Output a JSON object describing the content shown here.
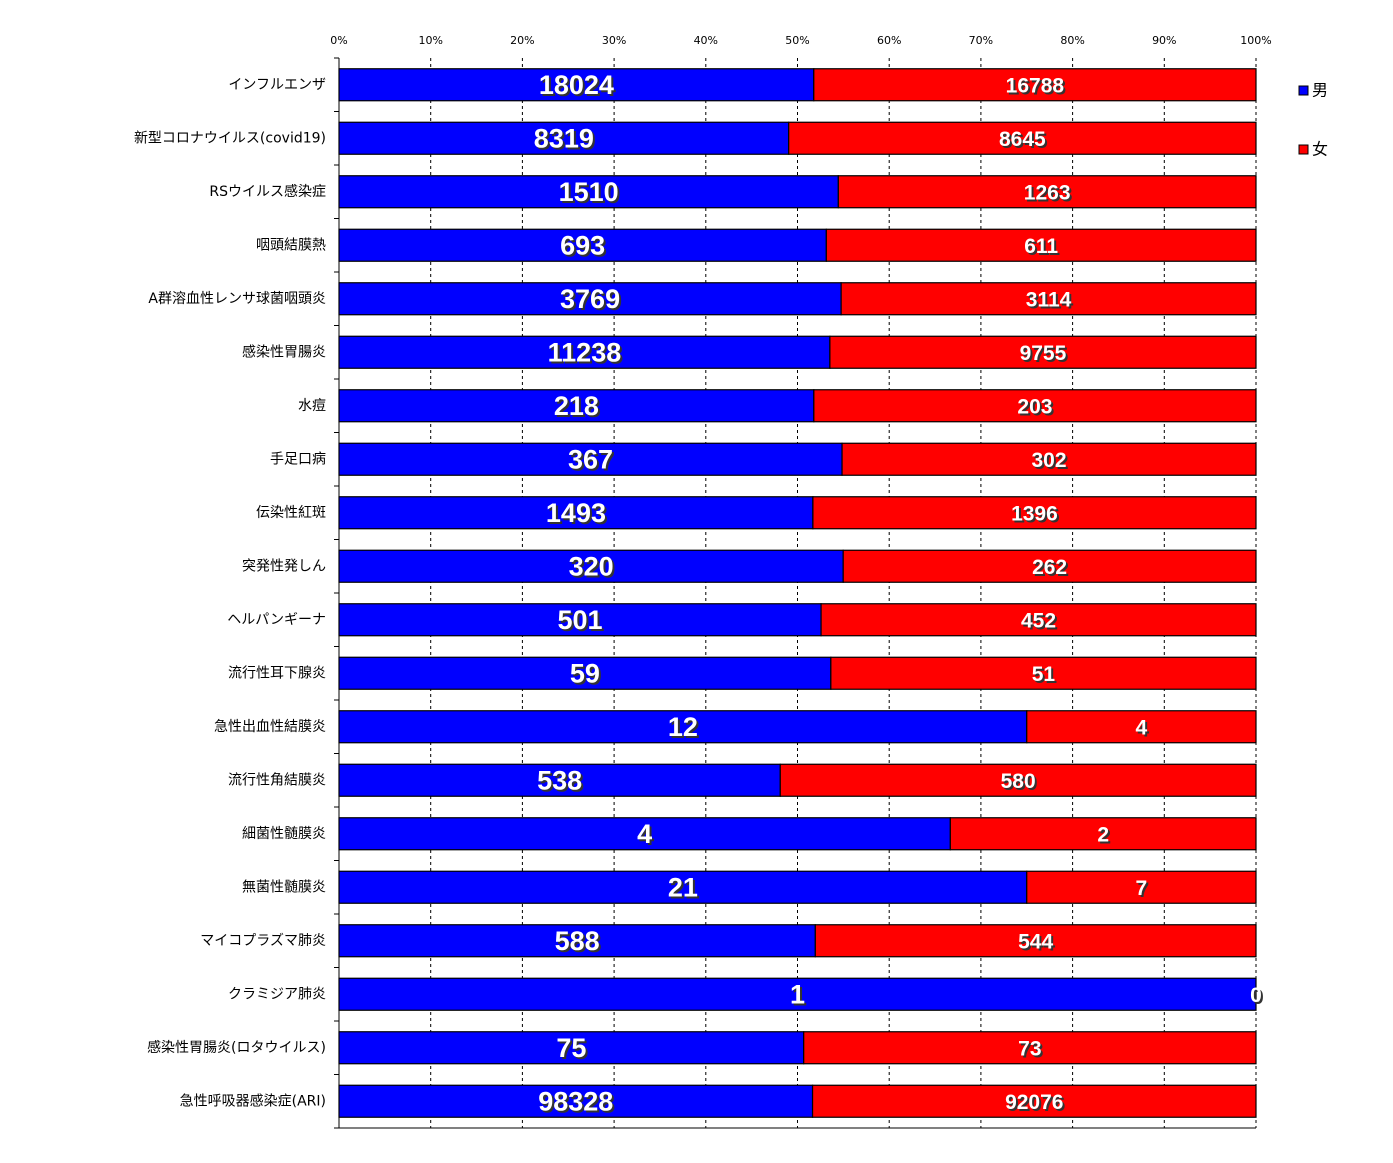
{
  "chart_data": {
    "type": "bar",
    "orientation": "horizontal",
    "stacking": "percent",
    "categories": [
      "インフルエンザ",
      "新型コロナウイルス(covid19)",
      "RSウイルス感染症",
      "咽頭結膜熱",
      "A群溶血性レンサ球菌咽頭炎",
      "感染性胃腸炎",
      "水痘",
      "手足口病",
      "伝染性紅斑",
      "突発性発しん",
      "ヘルパンギーナ",
      "流行性耳下腺炎",
      "急性出血性結膜炎",
      "流行性角結膜炎",
      "細菌性髄膜炎",
      "無菌性髄膜炎",
      "マイコプラズマ肺炎",
      "クラミジア肺炎",
      "感染性胃腸炎(ロタウイルス)",
      "急性呼吸器感染症(ARI)"
    ],
    "series": [
      {
        "name": "男",
        "color": "#0000ff",
        "values": [
          18024,
          8319,
          1510,
          693,
          3769,
          11238,
          218,
          367,
          1493,
          320,
          501,
          59,
          12,
          538,
          4,
          21,
          588,
          1,
          75,
          98328
        ]
      },
      {
        "name": "女",
        "color": "#ff0000",
        "values": [
          16788,
          8645,
          1263,
          611,
          3114,
          9755,
          203,
          302,
          1396,
          262,
          452,
          51,
          4,
          580,
          2,
          7,
          544,
          0,
          73,
          92076
        ]
      }
    ],
    "xlim": [
      0,
      100
    ],
    "xticks": [
      {
        "value": 0,
        "label": "0%"
      },
      {
        "value": 10,
        "label": "10%"
      },
      {
        "value": 20,
        "label": "20%"
      },
      {
        "value": 30,
        "label": "30%"
      },
      {
        "value": 40,
        "label": "40%"
      },
      {
        "value": 50,
        "label": "50%"
      },
      {
        "value": 60,
        "label": "60%"
      },
      {
        "value": 70,
        "label": "70%"
      },
      {
        "value": 80,
        "label": "80%"
      },
      {
        "value": 90,
        "label": "90%"
      },
      {
        "value": 100,
        "label": "100%"
      }
    ],
    "grid": true,
    "legend": "right"
  }
}
